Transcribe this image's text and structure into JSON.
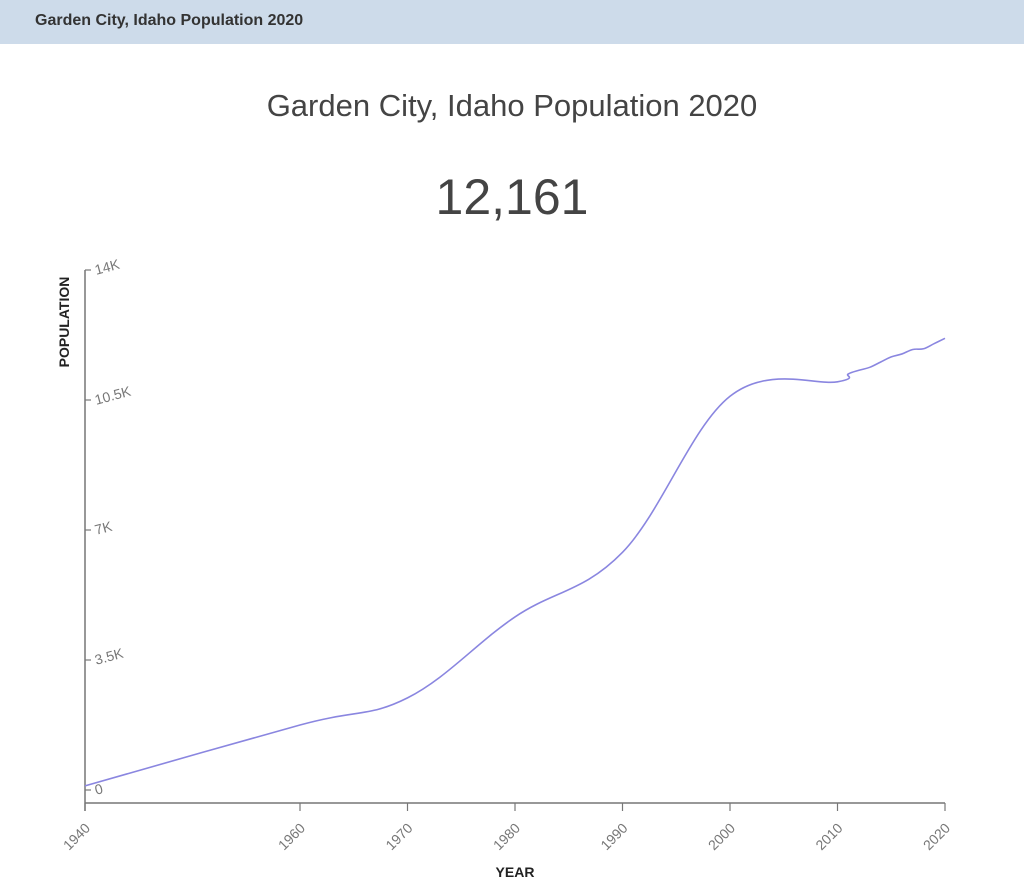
{
  "header": {
    "title": "Garden City, Idaho Population 2020"
  },
  "main": {
    "title": "Garden City, Idaho Population 2020",
    "headline_value": "12,161"
  },
  "colors": {
    "line": "#8a86e0",
    "axis": "#777777",
    "header_bg": "#cddbea"
  },
  "chart_data": {
    "type": "line",
    "title": "Garden City, Idaho Population 2020",
    "subtitle": "12,161",
    "xlabel": "YEAR",
    "ylabel": "POPULATION",
    "x": [
      1940,
      1960,
      1970,
      1980,
      1990,
      2000,
      2010,
      2011,
      2012,
      2013,
      2014,
      2015,
      2016,
      2017,
      2018,
      2019,
      2020
    ],
    "series": [
      {
        "name": "Population",
        "values": [
          110,
          1750,
          2480,
          4660,
          6400,
          10600,
          10990,
          11200,
          11300,
          11380,
          11520,
          11660,
          11740,
          11860,
          11880,
          12020,
          12161
        ]
      }
    ],
    "xlim": [
      1940,
      2020
    ],
    "ylim": [
      0,
      14000
    ],
    "x_ticks": [
      "1940",
      "1960",
      "1970",
      "1980",
      "1990",
      "2000",
      "2010",
      "2020"
    ],
    "y_ticks": [
      "0",
      "3.5K",
      "7K",
      "10.5K",
      "14K"
    ],
    "grid": false,
    "legend": "none"
  }
}
